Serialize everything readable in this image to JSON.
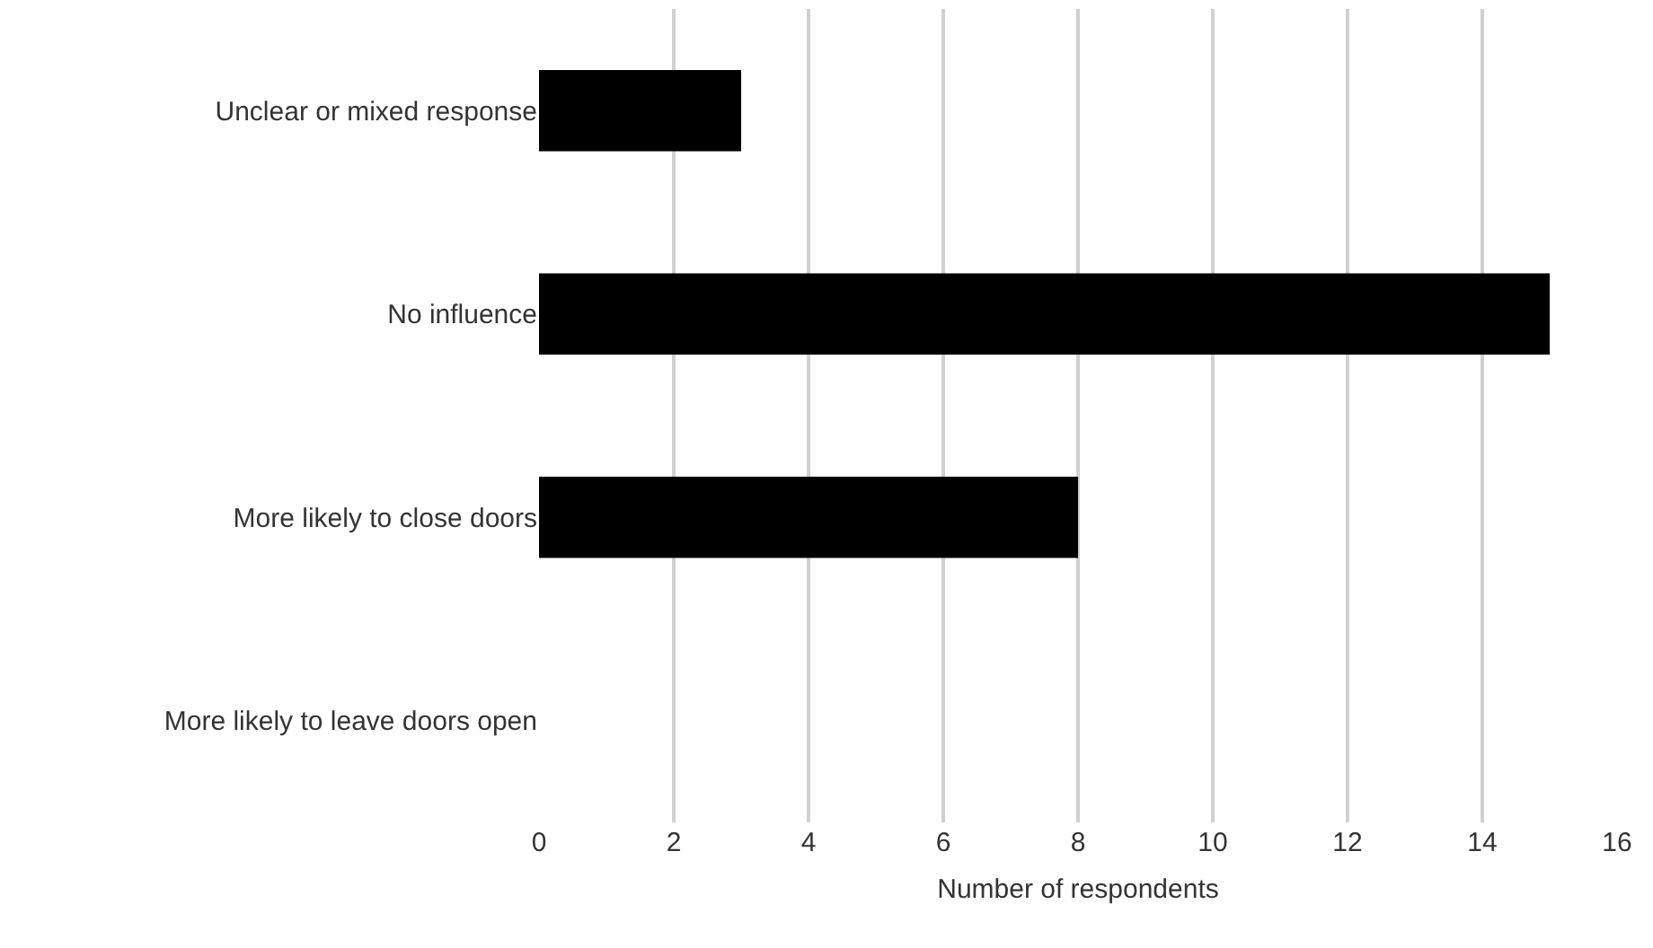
{
  "chart_data": {
    "type": "bar",
    "orientation": "horizontal",
    "xlabel": "Number of respondents",
    "categories": [
      "Unclear or mixed response",
      "No influence",
      "More likely to close doors",
      "More likely to leave doors open"
    ],
    "values": [
      3,
      15,
      8,
      0
    ],
    "color": "#000000",
    "xlim": [
      0,
      16
    ],
    "xticks": [
      0,
      2,
      4,
      6,
      8,
      10,
      12,
      14,
      16
    ],
    "grid": "x"
  }
}
